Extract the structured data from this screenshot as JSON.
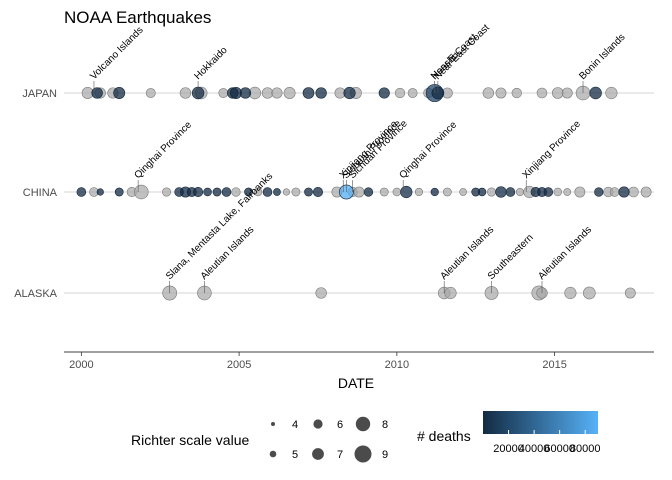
{
  "chart_data": {
    "type": "scatter",
    "title": "NOAA Earthquakes",
    "xlabel": "DATE",
    "ylabel": "",
    "xlim": [
      1999.45,
      2018.15
    ],
    "x_ticks": [
      2000,
      2005,
      2010,
      2015
    ],
    "x_tick_labels": [
      "2000",
      "2005",
      "2010",
      "2015"
    ],
    "categories": [
      "ALASKA",
      "CHINA",
      "JAPAN"
    ],
    "grid": "horizontal lines at categories only",
    "colors": {
      "no_deaths": "#a6a6a6",
      "deaths_low": "#132b43",
      "deaths_high": "#56b1f7"
    },
    "annotations": [
      {
        "category": "JAPAN",
        "date": 2000.4,
        "text": "Volcano Islands"
      },
      {
        "category": "JAPAN",
        "date": 2003.7,
        "text": "Hokkaido"
      },
      {
        "category": "JAPAN",
        "date": 2011.2,
        "text": "Honshu"
      },
      {
        "category": "JAPAN",
        "date": 2011.2,
        "text": "Near E Coast"
      },
      {
        "category": "JAPAN",
        "date": 2011.3,
        "text": "Near East Coast"
      },
      {
        "category": "JAPAN",
        "date": 2015.9,
        "text": "Bonin Islands"
      },
      {
        "category": "CHINA",
        "date": 2001.8,
        "text": "Qinghai Province"
      },
      {
        "category": "CHINA",
        "date": 2008.3,
        "text": "Xinjiang Province"
      },
      {
        "category": "CHINA",
        "date": 2008.4,
        "text": "Sichuan Province"
      },
      {
        "category": "CHINA",
        "date": 2008.6,
        "text": "Sichuan Province"
      },
      {
        "category": "CHINA",
        "date": 2010.2,
        "text": "Qinghai Province"
      },
      {
        "category": "CHINA",
        "date": 2014.1,
        "text": "Xinjiang Province"
      },
      {
        "category": "ALASKA",
        "date": 2002.8,
        "text": "Slana, Mentasta Lake, Fairbanks"
      },
      {
        "category": "ALASKA",
        "date": 2003.9,
        "text": "Aleutian Islands"
      },
      {
        "category": "ALASKA",
        "date": 2011.5,
        "text": "Aleutian Islands"
      },
      {
        "category": "ALASKA",
        "date": 2013.0,
        "text": "Southeastern"
      },
      {
        "category": "ALASKA",
        "date": 2014.6,
        "text": "Aleutian Islands"
      }
    ],
    "series": [
      {
        "name": "JAPAN",
        "points": [
          {
            "date": 2000.2,
            "mag": 6.8,
            "deaths": null
          },
          {
            "date": 2000.5,
            "mag": 6.6,
            "deaths": 1
          },
          {
            "date": 2000.6,
            "mag": 6.5,
            "deaths": null
          },
          {
            "date": 2001.0,
            "mag": 6.5,
            "deaths": null
          },
          {
            "date": 2001.2,
            "mag": 6.8,
            "deaths": 2
          },
          {
            "date": 2002.2,
            "mag": 6.0,
            "deaths": null
          },
          {
            "date": 2003.3,
            "mag": 6.6,
            "deaths": null
          },
          {
            "date": 2003.7,
            "mag": 7.0,
            "deaths": 2
          },
          {
            "date": 2003.8,
            "mag": 7.0,
            "deaths": null
          },
          {
            "date": 2004.5,
            "mag": 6.0,
            "deaths": null
          },
          {
            "date": 2004.8,
            "mag": 6.6,
            "deaths": 40
          },
          {
            "date": 2004.9,
            "mag": 6.8,
            "deaths": 3
          },
          {
            "date": 2005.2,
            "mag": 6.6,
            "deaths": 1
          },
          {
            "date": 2005.5,
            "mag": 7.0,
            "deaths": null
          },
          {
            "date": 2005.9,
            "mag": 6.6,
            "deaths": null
          },
          {
            "date": 2006.2,
            "mag": 6.5,
            "deaths": null
          },
          {
            "date": 2006.6,
            "mag": 6.8,
            "deaths": null
          },
          {
            "date": 2007.2,
            "mag": 6.7,
            "deaths": 1
          },
          {
            "date": 2007.6,
            "mag": 6.6,
            "deaths": 11
          },
          {
            "date": 2008.2,
            "mag": 6.5,
            "deaths": null
          },
          {
            "date": 2008.5,
            "mag": 6.9,
            "deaths": 13
          },
          {
            "date": 2008.7,
            "mag": 6.8,
            "deaths": null
          },
          {
            "date": 2009.6,
            "mag": 6.5,
            "deaths": 1
          },
          {
            "date": 2010.1,
            "mag": 6.2,
            "deaths": null
          },
          {
            "date": 2010.5,
            "mag": 6.0,
            "deaths": null
          },
          {
            "date": 2011.0,
            "mag": 6.2,
            "deaths": null
          },
          {
            "date": 2011.2,
            "mag": 9.1,
            "deaths": 18400
          },
          {
            "date": 2011.3,
            "mag": 7.1,
            "deaths": 4
          },
          {
            "date": 2011.6,
            "mag": 6.4,
            "deaths": null
          },
          {
            "date": 2012.9,
            "mag": 6.6,
            "deaths": null
          },
          {
            "date": 2013.3,
            "mag": 6.4,
            "deaths": null
          },
          {
            "date": 2013.8,
            "mag": 6.2,
            "deaths": null
          },
          {
            "date": 2014.6,
            "mag": 6.3,
            "deaths": null
          },
          {
            "date": 2015.1,
            "mag": 6.7,
            "deaths": null
          },
          {
            "date": 2015.4,
            "mag": 6.4,
            "deaths": null
          },
          {
            "date": 2015.9,
            "mag": 7.8,
            "deaths": null
          },
          {
            "date": 2016.3,
            "mag": 7.0,
            "deaths": 50
          },
          {
            "date": 2016.8,
            "mag": 6.9,
            "deaths": null
          }
        ]
      },
      {
        "name": "CHINA",
        "points": [
          {
            "date": 2000.0,
            "mag": 5.9,
            "deaths": 7
          },
          {
            "date": 2000.4,
            "mag": 5.9,
            "deaths": null
          },
          {
            "date": 2000.6,
            "mag": 5.0,
            "deaths": 2
          },
          {
            "date": 2001.2,
            "mag": 5.6,
            "deaths": 1
          },
          {
            "date": 2001.6,
            "mag": 6.1,
            "deaths": null
          },
          {
            "date": 2001.9,
            "mag": 7.8,
            "deaths": null
          },
          {
            "date": 2002.7,
            "mag": 5.7,
            "deaths": null
          },
          {
            "date": 2003.1,
            "mag": 5.9,
            "deaths": 1
          },
          {
            "date": 2003.3,
            "mag": 6.4,
            "deaths": 268
          },
          {
            "date": 2003.5,
            "mag": 6.0,
            "deaths": 3
          },
          {
            "date": 2003.7,
            "mag": 6.1,
            "deaths": 16
          },
          {
            "date": 2004.0,
            "mag": 5.5,
            "deaths": 4
          },
          {
            "date": 2004.3,
            "mag": 5.6,
            "deaths": 2
          },
          {
            "date": 2004.6,
            "mag": 5.9,
            "deaths": 3
          },
          {
            "date": 2004.9,
            "mag": 5.8,
            "deaths": null
          },
          {
            "date": 2005.3,
            "mag": 5.6,
            "deaths": 16
          },
          {
            "date": 2005.6,
            "mag": 5.5,
            "deaths": null
          },
          {
            "date": 2005.9,
            "mag": 5.9,
            "deaths": 13
          },
          {
            "date": 2006.2,
            "mag": 5.2,
            "deaths": 1
          },
          {
            "date": 2006.5,
            "mag": 5.0,
            "deaths": null
          },
          {
            "date": 2006.8,
            "mag": 5.6,
            "deaths": null
          },
          {
            "date": 2007.2,
            "mag": 5.6,
            "deaths": 3
          },
          {
            "date": 2007.5,
            "mag": 6.1,
            "deaths": 3
          },
          {
            "date": 2008.1,
            "mag": 6.4,
            "deaths": null
          },
          {
            "date": 2008.4,
            "mag": 7.9,
            "deaths": 87652
          },
          {
            "date": 2008.6,
            "mag": 6.1,
            "deaths": null
          },
          {
            "date": 2008.8,
            "mag": 6.4,
            "deaths": null
          },
          {
            "date": 2009.1,
            "mag": 5.8,
            "deaths": 1
          },
          {
            "date": 2009.6,
            "mag": 5.6,
            "deaths": null
          },
          {
            "date": 2010.0,
            "mag": 5.5,
            "deaths": null
          },
          {
            "date": 2010.3,
            "mag": 6.9,
            "deaths": 2698
          },
          {
            "date": 2010.7,
            "mag": 5.4,
            "deaths": null
          },
          {
            "date": 2011.2,
            "mag": 5.4,
            "deaths": 25
          },
          {
            "date": 2011.6,
            "mag": 5.6,
            "deaths": null
          },
          {
            "date": 2012.1,
            "mag": 5.2,
            "deaths": null
          },
          {
            "date": 2012.5,
            "mag": 5.6,
            "deaths": 3
          },
          {
            "date": 2012.7,
            "mag": 5.5,
            "deaths": 81
          },
          {
            "date": 2013.0,
            "mag": 5.7,
            "deaths": null
          },
          {
            "date": 2013.3,
            "mag": 6.6,
            "deaths": 196
          },
          {
            "date": 2013.6,
            "mag": 5.9,
            "deaths": 95
          },
          {
            "date": 2013.9,
            "mag": 5.3,
            "deaths": null
          },
          {
            "date": 2014.2,
            "mag": 6.9,
            "deaths": null
          },
          {
            "date": 2014.4,
            "mag": 6.1,
            "deaths": 617
          },
          {
            "date": 2014.6,
            "mag": 6.0,
            "deaths": 5
          },
          {
            "date": 2014.8,
            "mag": 5.9,
            "deaths": 1
          },
          {
            "date": 2015.1,
            "mag": 5.5,
            "deaths": null
          },
          {
            "date": 2015.4,
            "mag": 5.2,
            "deaths": null
          },
          {
            "date": 2015.8,
            "mag": 6.4,
            "deaths": null
          },
          {
            "date": 2016.4,
            "mag": 5.8,
            "deaths": 2
          },
          {
            "date": 2016.7,
            "mag": 6.2,
            "deaths": null
          },
          {
            "date": 2016.9,
            "mag": 5.9,
            "deaths": null
          },
          {
            "date": 2017.2,
            "mag": 6.5,
            "deaths": 25
          },
          {
            "date": 2017.5,
            "mag": 6.3,
            "deaths": null
          },
          {
            "date": 2017.9,
            "mag": 6.4,
            "deaths": null
          }
        ]
      },
      {
        "name": "ALASKA",
        "points": [
          {
            "date": 2002.8,
            "mag": 7.9,
            "deaths": null
          },
          {
            "date": 2003.9,
            "mag": 7.8,
            "deaths": null
          },
          {
            "date": 2007.6,
            "mag": 6.6,
            "deaths": null
          },
          {
            "date": 2011.5,
            "mag": 7.0,
            "deaths": null
          },
          {
            "date": 2011.7,
            "mag": 6.9,
            "deaths": null
          },
          {
            "date": 2013.0,
            "mag": 7.5,
            "deaths": null
          },
          {
            "date": 2014.5,
            "mag": 7.9,
            "deaths": null
          },
          {
            "date": 2014.6,
            "mag": 6.6,
            "deaths": null
          },
          {
            "date": 2015.5,
            "mag": 6.9,
            "deaths": null
          },
          {
            "date": 2016.1,
            "mag": 7.1,
            "deaths": null
          },
          {
            "date": 2017.4,
            "mag": 6.4,
            "deaths": null
          }
        ]
      }
    ],
    "legend": {
      "size": {
        "title": "Richter scale value",
        "entries": [
          "4",
          "5",
          "6",
          "7",
          "8",
          "9"
        ]
      },
      "color": {
        "title": "# deaths",
        "range": [
          0,
          90000
        ],
        "ticks": [
          "20000",
          "40000",
          "60000",
          "80000"
        ]
      },
      "position": "bottom"
    }
  }
}
